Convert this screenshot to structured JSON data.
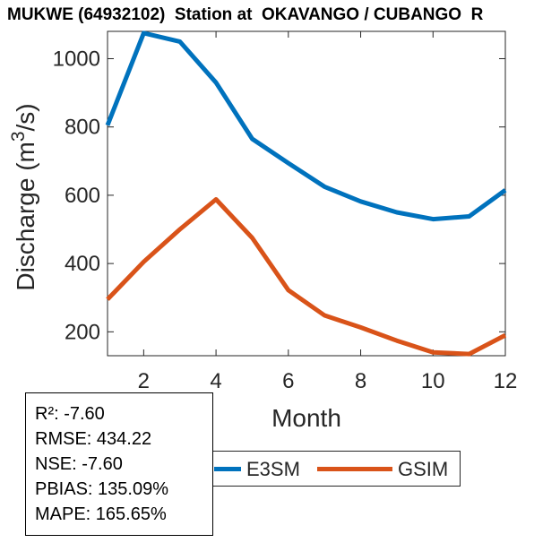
{
  "title": "MUKWE (64932102)  Station at  OKAVANGO / CUBANGO  R",
  "axes": {
    "xlabel": "Month",
    "ylabel_prefix": "Discharge (m",
    "ylabel_sup": "3",
    "ylabel_suffix": "/s)"
  },
  "stats_box": {
    "lines": [
      "R²: -7.60",
      "RMSE: 434.22",
      "NSE: -7.60",
      "PBIAS: 135.09%",
      "MAPE: 165.65%"
    ]
  },
  "legend": {
    "items": [
      {
        "label": "E3SM",
        "color": "#0072BD"
      },
      {
        "label": "GSIM",
        "color": "#D95319"
      }
    ]
  },
  "chart_data": {
    "type": "line",
    "title": "MUKWE (64932102)  Station at  OKAVANGO / CUBANGO  R",
    "xlabel": "Month",
    "ylabel": "Discharge (m^3/s)",
    "x": [
      1,
      2,
      3,
      4,
      5,
      6,
      7,
      8,
      9,
      10,
      11,
      12
    ],
    "xticks": [
      2,
      4,
      6,
      8,
      10,
      12
    ],
    "yticks": [
      200,
      400,
      600,
      800,
      1000
    ],
    "xlim": [
      1,
      12
    ],
    "ylim": [
      130,
      1080
    ],
    "grid": false,
    "legend_position": "below-axes-horizontal",
    "series": [
      {
        "name": "E3SM",
        "color": "#0072BD",
        "values": [
          805,
          1075,
          1050,
          930,
          765,
          694,
          625,
          582,
          550,
          530,
          538,
          615
        ]
      },
      {
        "name": "GSIM",
        "color": "#D95319",
        "values": [
          295,
          405,
          500,
          588,
          475,
          322,
          248,
          213,
          174,
          140,
          135,
          190
        ]
      }
    ]
  }
}
